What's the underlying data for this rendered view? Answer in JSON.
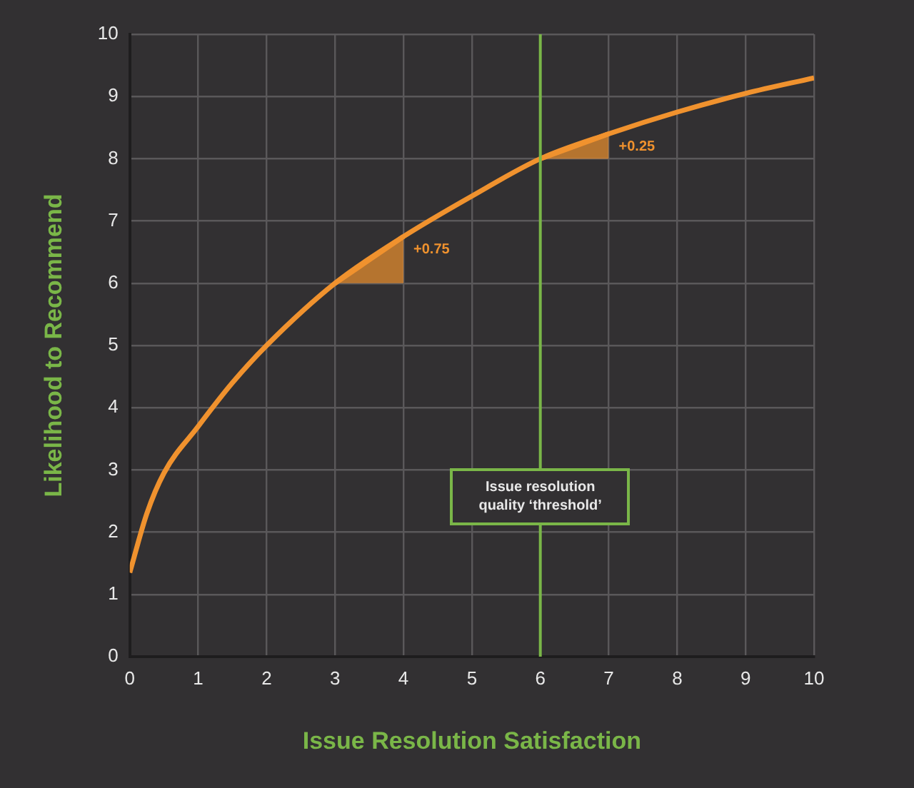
{
  "chart_data": {
    "type": "line",
    "xlabel": "Issue Resolution Satisfaction",
    "ylabel": "Likelihood to Recommend",
    "x": [
      0,
      0.25,
      0.5,
      1,
      1.5,
      2,
      3,
      4,
      5,
      6,
      7,
      8,
      9,
      10
    ],
    "series": [
      {
        "color": "#f0922e",
        "values": [
          1.35,
          2.3,
          2.95,
          3.7,
          4.4,
          5.0,
          6.0,
          6.75,
          7.4,
          8.0,
          8.4,
          8.75,
          9.05,
          9.3
        ]
      },
      {
        "type": "line",
        "color": "#f0922e",
        "x": [
          3,
          4
        ],
        "values": [
          6.0,
          6.75
        ],
        "lower": [
          6.0,
          6.0
        ],
        "upper": [
          6.0,
          6.75
        ]
      },
      {
        "type": "line",
        "color": "#f0922e",
        "x": [
          6,
          7
        ],
        "values": [
          8.0,
          8.4
        ],
        "lower": [
          8.0,
          8.0
        ],
        "upper": [
          8.0,
          8.4
        ]
      }
    ],
    "xlim": [
      0,
      10
    ],
    "ylim": [
      0,
      10
    ],
    "xticks": [
      0,
      1,
      2,
      3,
      4,
      5,
      6,
      7,
      8,
      9,
      10
    ],
    "yticks": [
      0,
      1,
      2,
      3,
      4,
      5,
      6,
      7,
      8,
      9,
      10
    ],
    "grid": true,
    "legend": false,
    "marker": "none",
    "line_style": "solid",
    "ref_lines": [
      {
        "axis": "x",
        "value": 6,
        "label": "Issue resolution quality ‘threshold’",
        "color": "#7ab648"
      }
    ],
    "annotations": [
      {
        "text": "+0.75",
        "x": 4,
        "y": 6.75
      },
      {
        "text": "+0.25",
        "x": 7,
        "y": 8.4
      }
    ]
  }
}
